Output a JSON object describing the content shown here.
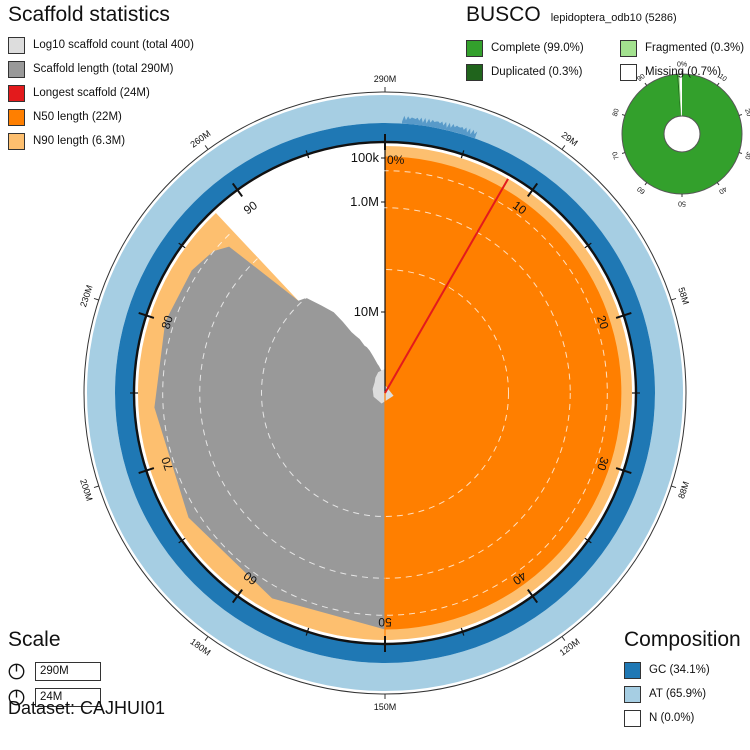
{
  "chart_data": {
    "type": "snail",
    "dataset": "Dataset: CAJHUI01",
    "scaffold_stats": {
      "title": "Scaffold statistics",
      "total_length_bp": 290000000,
      "scaffold_count": 400,
      "longest_bp": 24000000,
      "n50_bp": 22000000,
      "n90_bp": 6300000,
      "n50_position_percent": 50,
      "n90_position_percent": 88,
      "longest_position_percent": 8.3,
      "scaffold_length_profile_percent_bp": [
        [
          0,
          24
        ],
        [
          8,
          24
        ],
        [
          9,
          23.8
        ],
        [
          16,
          23
        ],
        [
          24,
          22.3
        ],
        [
          32,
          22.1
        ],
        [
          40,
          22
        ],
        [
          50,
          22
        ],
        [
          58,
          21.6
        ],
        [
          66,
          21.3
        ],
        [
          74,
          21
        ],
        [
          80,
          21
        ],
        [
          84,
          20.6
        ],
        [
          86,
          19.5
        ],
        [
          87,
          18
        ],
        [
          88,
          6.3
        ],
        [
          89,
          6
        ],
        [
          90,
          4.6
        ],
        [
          91,
          3.6
        ],
        [
          91.5,
          2.7
        ],
        [
          92,
          1.9
        ],
        [
          92.5,
          1.6
        ],
        [
          93,
          1.4
        ],
        [
          93.5,
          1.05
        ],
        [
          94,
          0.95
        ],
        [
          94.5,
          0.8
        ],
        [
          95,
          0.6
        ],
        [
          95.5,
          0.45
        ],
        [
          96,
          0.35
        ],
        [
          96.5,
          0.3
        ],
        [
          97,
          0.24
        ],
        [
          97.5,
          0.2
        ],
        [
          98,
          0.16
        ],
        [
          98.5,
          0.12
        ],
        [
          99,
          0.1
        ],
        [
          99.5,
          0.08
        ],
        [
          100,
          0.07
        ]
      ],
      "log_count_ticks": [
        "100k",
        "1.0M",
        "10M"
      ],
      "legend": [
        {
          "label": "Log10 scaffold count (total 400)",
          "color": "#dddddd"
        },
        {
          "label": "Scaffold length (total 290M)",
          "color": "#999999"
        },
        {
          "label": "Longest scaffold (24M)",
          "color": "#e31a1c"
        },
        {
          "label": "N50 length (22M)",
          "color": "#ff7f00"
        },
        {
          "label": "N90 length (6.3M)",
          "color": "#fdbf6f"
        }
      ]
    },
    "percent_ticks": [
      "0%",
      "10",
      "20",
      "30",
      "40",
      "50",
      "60",
      "70",
      "80",
      "90"
    ],
    "length_ticks": [
      "290M",
      "29M",
      "58M",
      "88M",
      "120M",
      "150M",
      "180M",
      "200M",
      "230M",
      "260M"
    ],
    "busco": {
      "title": "BUSCO",
      "lineage": "lepidoptera_odb10 (5286)",
      "complete_percent": 99.0,
      "duplicated_percent": 0.3,
      "fragmented_percent": 0.3,
      "missing_percent": 0.7,
      "ticks": [
        "0%",
        "10",
        "20",
        "30",
        "40",
        "50",
        "60",
        "70",
        "80",
        "90"
      ],
      "legend": [
        {
          "label": "Complete (99.0%)",
          "color": "#33a02c"
        },
        {
          "label": "Fragmented (0.3%)",
          "color": "#a3e28f"
        },
        {
          "label": "Duplicated (0.3%)",
          "color": "#20641c"
        },
        {
          "label": "Missing (0.7%)",
          "color": "#ffffff"
        }
      ]
    },
    "composition": {
      "title": "Composition",
      "gc_percent": 34.1,
      "at_percent": 65.9,
      "n_percent": 0.0,
      "legend": [
        {
          "label": "GC (34.1%)",
          "color": "#1f78b4"
        },
        {
          "label": "AT (65.9%)",
          "color": "#a6cee3"
        },
        {
          "label": "N (0.0%)",
          "color": "#ffffff"
        }
      ]
    },
    "scale": {
      "title": "Scale",
      "items": [
        {
          "label": "290M"
        },
        {
          "label": "24M"
        }
      ]
    }
  }
}
